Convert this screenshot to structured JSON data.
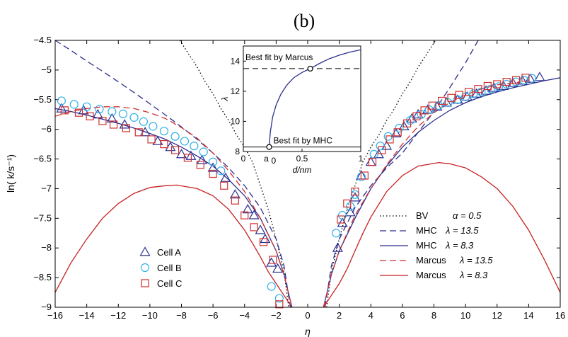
{
  "chart_data": {
    "type": "line",
    "panel_label": "(b)",
    "xlabel": "η",
    "ylabel": "ln( k/s⁻¹)",
    "xlim": [
      -16,
      16
    ],
    "ylim": [
      -9,
      -4.5
    ],
    "xticks": [
      -16,
      -14,
      -12,
      -10,
      -8,
      -6,
      -4,
      -2,
      0,
      2,
      4,
      6,
      8,
      10,
      12,
      14,
      16
    ],
    "yticks": [
      -4.5,
      -5,
      -5.5,
      -6,
      -6.5,
      -7,
      -7.5,
      -8,
      -8.5,
      -9
    ],
    "xtick_labels": [
      "−16",
      "−14",
      "−12",
      "−10",
      "−8",
      "−6",
      "−4",
      "−2",
      "0",
      "2",
      "4",
      "6",
      "8",
      "10",
      "12",
      "14",
      "16"
    ],
    "ytick_labels": [
      "−4.5",
      "−5",
      "−5.5",
      "−6",
      "−6.5",
      "−7",
      "−7.5",
      "−8",
      "−8.5",
      "−9"
    ],
    "grid": false,
    "curves": [
      {
        "key": "bv",
        "legend": "BV",
        "param": "α = 0.5",
        "color": "#000000",
        "dash": "1.5,3",
        "x": [
          -8.1,
          -7.5,
          -7,
          -6.5,
          -6,
          -5.5,
          -5,
          -4.5,
          -4,
          -3.5,
          -3,
          -2.5,
          -2,
          -1.5,
          -1.2,
          1.2,
          1.5,
          2,
          2.5,
          3,
          3.5,
          4,
          4.5,
          5,
          5.5,
          6,
          6.5,
          7,
          7.5,
          8.1
        ],
        "y": [
          -4.5,
          -4.75,
          -4.95,
          -5.2,
          -5.4,
          -5.65,
          -5.85,
          -6.1,
          -6.3,
          -6.55,
          -6.95,
          -7.35,
          -7.85,
          -8.4,
          -9.0,
          -9.0,
          -8.4,
          -7.85,
          -7.35,
          -6.95,
          -6.55,
          -6.3,
          -6.1,
          -5.85,
          -5.65,
          -5.4,
          -5.2,
          -4.95,
          -4.75,
          -4.5
        ]
      },
      {
        "key": "mhc135",
        "legend": "MHC",
        "param": "λ = 13.5",
        "color": "#2b2f8f",
        "dash": "9,5",
        "x": [
          -16,
          -15,
          -14,
          -13,
          -12,
          -11,
          -10,
          -9,
          -8,
          -7,
          -6,
          -5,
          -4,
          -3,
          -2,
          -1.5,
          -1.1,
          1.1,
          1.5,
          2,
          3,
          4,
          5,
          6,
          7,
          8,
          9,
          10,
          10.8
        ],
        "y": [
          -4.5,
          -4.67,
          -4.85,
          -5.02,
          -5.2,
          -5.38,
          -5.57,
          -5.76,
          -5.96,
          -6.17,
          -6.4,
          -6.65,
          -6.95,
          -7.32,
          -7.85,
          -8.3,
          -9.0,
          -9.0,
          -8.3,
          -7.85,
          -7.32,
          -6.95,
          -6.65,
          -6.4,
          -6.05,
          -5.7,
          -5.3,
          -4.88,
          -4.5
        ]
      },
      {
        "key": "mhc83",
        "legend": "MHC",
        "param": "λ = 8.3",
        "color": "#2b2f8f",
        "dash": "",
        "x": [
          -16,
          -15,
          -14,
          -13,
          -12,
          -11,
          -10,
          -9,
          -8,
          -7,
          -6,
          -5,
          -4,
          -3,
          -2,
          -1.5,
          -1.0,
          1.0,
          1.5,
          2,
          3,
          4,
          5,
          6,
          7,
          8,
          9,
          10,
          11,
          12,
          13,
          14,
          15,
          16
        ],
        "y": [
          -5.65,
          -5.7,
          -5.76,
          -5.83,
          -5.9,
          -5.98,
          -6.07,
          -6.17,
          -6.3,
          -6.45,
          -6.62,
          -6.85,
          -7.12,
          -7.5,
          -8.05,
          -8.45,
          -9.0,
          -9.0,
          -8.45,
          -8.05,
          -7.5,
          -7.0,
          -6.62,
          -6.3,
          -6.05,
          -5.85,
          -5.68,
          -5.55,
          -5.45,
          -5.37,
          -5.3,
          -5.24,
          -5.18,
          -5.13
        ]
      },
      {
        "key": "marcus135",
        "legend": "Marcus",
        "param": "λ = 13.5",
        "color": "#d03030",
        "dash": "9,5",
        "x": [
          -16,
          -15,
          -14,
          -13,
          -12,
          -11,
          -10,
          -9,
          -8,
          -7,
          -6,
          -5,
          -4,
          -3,
          -2,
          -1.5,
          -1.0,
          1.0,
          1.5,
          2,
          3,
          4,
          5,
          6,
          7,
          8,
          9,
          10,
          11,
          12,
          13,
          13.5
        ],
        "y": [
          -5.78,
          -5.7,
          -5.65,
          -5.62,
          -5.62,
          -5.65,
          -5.72,
          -5.82,
          -5.97,
          -6.15,
          -6.4,
          -6.7,
          -7.05,
          -7.5,
          -8.05,
          -8.45,
          -9.0,
          -9.0,
          -8.45,
          -8.05,
          -7.45,
          -7.0,
          -6.6,
          -6.25,
          -5.95,
          -5.72,
          -5.55,
          -5.42,
          -5.32,
          -5.25,
          -5.22,
          -5.2
        ]
      },
      {
        "key": "marcus83",
        "legend": "Marcus",
        "param": "λ = 8.3",
        "color": "#c62020",
        "dash": "",
        "x": [
          -16,
          -15,
          -14,
          -13,
          -12,
          -11,
          -10,
          -9,
          -8.3,
          -7,
          -6,
          -5,
          -4,
          -3.5,
          -3,
          -2.5,
          -2,
          -1.5,
          -1.0,
          1.0,
          1.5,
          2,
          2.5,
          3,
          3.5,
          4,
          5,
          6,
          7,
          8.3,
          9,
          10,
          11,
          12,
          13,
          14,
          15,
          16
        ],
        "y": [
          -8.75,
          -8.25,
          -7.85,
          -7.5,
          -7.25,
          -7.08,
          -6.98,
          -6.95,
          -6.94,
          -7.0,
          -7.12,
          -7.35,
          -7.7,
          -7.92,
          -8.15,
          -8.4,
          -8.6,
          -8.8,
          -9.0,
          -9.0,
          -8.8,
          -8.6,
          -8.35,
          -8.05,
          -7.75,
          -7.48,
          -7.05,
          -6.78,
          -6.62,
          -6.56,
          -6.58,
          -6.65,
          -6.8,
          -7.0,
          -7.3,
          -7.7,
          -8.2,
          -8.75
        ]
      }
    ],
    "scatter_series": [
      {
        "name": "Cell A",
        "marker": "triangle",
        "color": "#2b2f8f",
        "x": [
          -15.6,
          -14.2,
          -13.3,
          -12.4,
          -11.6,
          -10.3,
          -9.5,
          -8.7,
          -8.0,
          -7.4,
          -6.7,
          -6.0,
          -5.2,
          -4.6,
          -3.8,
          -3.4,
          -3.0,
          -2.7,
          -2.3,
          -1.9,
          1.9,
          2.2,
          2.7,
          3.0,
          3.4,
          4.0,
          4.5,
          5.0,
          5.6,
          6.1,
          6.6,
          7.0,
          7.6,
          8.2,
          8.8,
          9.5,
          10.1,
          10.7,
          11.3,
          11.8,
          12.4,
          13.0,
          13.6,
          14.1,
          14.7
        ],
        "y": [
          -5.65,
          -5.68,
          -5.75,
          -5.82,
          -5.92,
          -6.05,
          -6.2,
          -6.3,
          -6.42,
          -6.45,
          -6.52,
          -6.65,
          -6.82,
          -7.1,
          -7.35,
          -7.45,
          -7.7,
          -7.85,
          -8.25,
          -8.35,
          -8.0,
          -7.58,
          -7.4,
          -7.15,
          -6.78,
          -6.55,
          -6.42,
          -6.28,
          -6.07,
          -5.95,
          -5.82,
          -5.75,
          -5.67,
          -5.62,
          -5.55,
          -5.5,
          -5.45,
          -5.4,
          -5.35,
          -5.3,
          -5.27,
          -5.22,
          -5.18,
          -5.15,
          -5.12
        ]
      },
      {
        "name": "Cell B",
        "marker": "circle",
        "color": "#30b0e8",
        "x": [
          -15.6,
          -14.8,
          -14.0,
          -13.2,
          -12.4,
          -11.7,
          -11.0,
          -10.4,
          -9.8,
          -9.1,
          -8.4,
          -7.8,
          -7.2,
          -6.6,
          -6.0,
          -5.5,
          -2.3,
          -1.8,
          1.8,
          2.2,
          2.7,
          3.0,
          3.4,
          4.2,
          4.6,
          5.1,
          5.8,
          6.5,
          7.2,
          7.7,
          8.3,
          8.9,
          9.5,
          10.0,
          10.5,
          11.0,
          11.6,
          12.1,
          12.6,
          13.2,
          13.7,
          14.2
        ],
        "y": [
          -5.52,
          -5.58,
          -5.62,
          -5.66,
          -5.7,
          -5.74,
          -5.8,
          -5.87,
          -5.95,
          -6.03,
          -6.12,
          -6.2,
          -6.28,
          -6.38,
          -6.55,
          -6.7,
          -8.65,
          -8.85,
          -7.75,
          -7.45,
          -7.3,
          -7.1,
          -6.8,
          -6.42,
          -6.28,
          -6.12,
          -5.98,
          -5.85,
          -5.75,
          -5.67,
          -5.6,
          -5.55,
          -5.5,
          -5.45,
          -5.4,
          -5.37,
          -5.32,
          -5.28,
          -5.24,
          -5.2,
          -5.17,
          -5.14
        ]
      },
      {
        "name": "Cell C",
        "marker": "square",
        "color": "#d03030",
        "x": [
          -15.4,
          -14.5,
          -13.8,
          -13.0,
          -12.3,
          -11.5,
          -10.7,
          -9.9,
          -9.1,
          -8.4,
          -7.6,
          -6.8,
          -6.0,
          -5.3,
          -4.6,
          -4.0,
          -3.4,
          -2.8,
          -2.2,
          -1.8,
          2.1,
          2.5,
          3.0,
          3.6,
          4.1,
          4.7,
          5.2,
          5.7,
          6.3,
          6.9,
          7.4,
          7.9,
          8.5,
          9.1,
          9.6,
          10.2,
          10.8,
          11.4,
          12.0,
          12.6,
          13.2,
          13.8
        ],
        "y": [
          -5.68,
          -5.72,
          -5.78,
          -5.86,
          -5.92,
          -5.98,
          -6.05,
          -6.17,
          -6.25,
          -6.35,
          -6.48,
          -6.6,
          -6.75,
          -6.95,
          -7.2,
          -7.45,
          -7.65,
          -7.9,
          -8.2,
          -8.95,
          -7.52,
          -7.25,
          -7.05,
          -6.78,
          -6.55,
          -6.35,
          -6.17,
          -6.05,
          -5.9,
          -5.78,
          -5.68,
          -5.6,
          -5.52,
          -5.47,
          -5.42,
          -5.37,
          -5.32,
          -5.27,
          -5.24,
          -5.2,
          -5.17,
          -5.13
        ]
      }
    ],
    "legend_lines": [
      {
        "label": "BV",
        "param": "α = 0.5",
        "color": "#000000",
        "dash": "1.5,3"
      },
      {
        "label": "MHC",
        "param": "λ = 13.5",
        "color": "#2b2f8f",
        "dash": "9,5"
      },
      {
        "label": "MHC",
        "param": "λ = 8.3",
        "color": "#2b2f8f",
        "dash": ""
      },
      {
        "label": "Marcus",
        "param": "λ = 13.5",
        "color": "#d03030",
        "dash": "9,5"
      },
      {
        "label": "Marcus",
        "param": "λ = 8.3",
        "color": "#c62020",
        "dash": ""
      }
    ],
    "legend_markers": [
      {
        "label": "Cell A",
        "marker": "triangle",
        "color": "#2b2f8f"
      },
      {
        "label": "Cell B",
        "marker": "circle",
        "color": "#30b0e8"
      },
      {
        "label": "Cell C",
        "marker": "square",
        "color": "#d03030"
      }
    ],
    "inset": {
      "xlabel": "d/nm",
      "ylabel": "λ",
      "xlim": [
        0,
        1
      ],
      "ylim": [
        8,
        15
      ],
      "xticks": [
        0,
        0.5,
        1
      ],
      "xtick_labels": [
        "0",
        "0.5",
        "1"
      ],
      "yticks": [
        8,
        10,
        12,
        14
      ],
      "ytick_labels": [
        "8",
        "10",
        "12",
        "14"
      ],
      "a0_label": "a",
      "a0_sub": "0",
      "a0_x": 0.22,
      "curve": {
        "x": [
          0.22,
          0.23,
          0.25,
          0.28,
          0.32,
          0.37,
          0.43,
          0.5,
          0.57,
          0.65,
          0.73,
          0.82,
          0.91,
          1.0
        ],
        "y": [
          8.3,
          9.3,
          10.3,
          11.1,
          11.8,
          12.4,
          12.9,
          13.25,
          13.5,
          13.85,
          14.15,
          14.4,
          14.6,
          14.75
        ]
      },
      "marcus_fit": {
        "label": "Best fit by Marcus",
        "lambda": 13.5,
        "d": 0.57
      },
      "mhc_fit": {
        "label": "Best fit by MHC",
        "lambda": 8.3,
        "d": 0.22
      }
    }
  }
}
